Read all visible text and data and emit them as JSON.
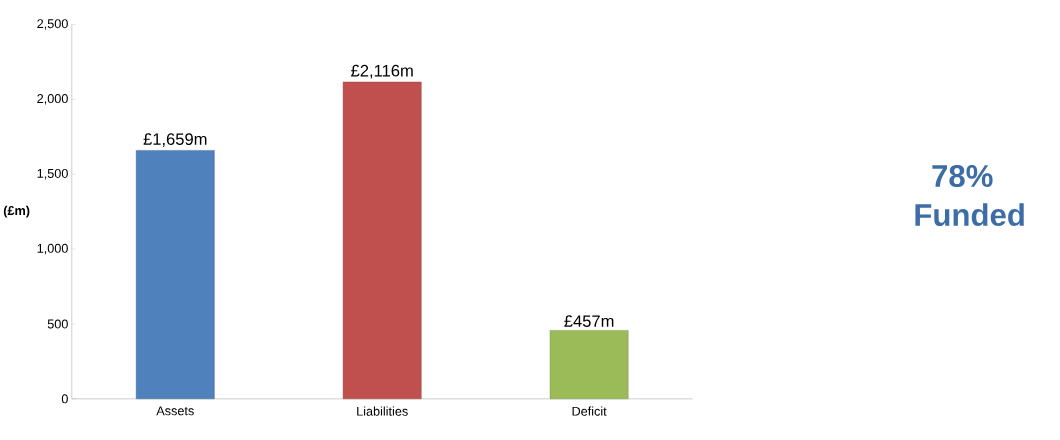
{
  "chart_data": {
    "type": "bar",
    "ylabel": "(£m)",
    "categories": [
      "Assets",
      "Liabilities",
      "Deficit"
    ],
    "values": [
      1659,
      2116,
      457
    ],
    "colors": [
      "#4f81bd",
      "#c0504d",
      "#9bbb59"
    ],
    "value_labels": [
      "£1,659m",
      "£2,116m",
      "£457m"
    ],
    "ylim": [
      0,
      2500
    ],
    "yticks": [
      {
        "value": 0,
        "label": "0"
      },
      {
        "value": 500,
        "label": "500"
      },
      {
        "value": 1000,
        "label": "1,000"
      },
      {
        "value": 1500,
        "label": "1,500"
      },
      {
        "value": 2000,
        "label": "2,000"
      },
      {
        "value": 2500,
        "label": "2,500"
      }
    ],
    "annotations": [
      "78% Funded"
    ]
  }
}
